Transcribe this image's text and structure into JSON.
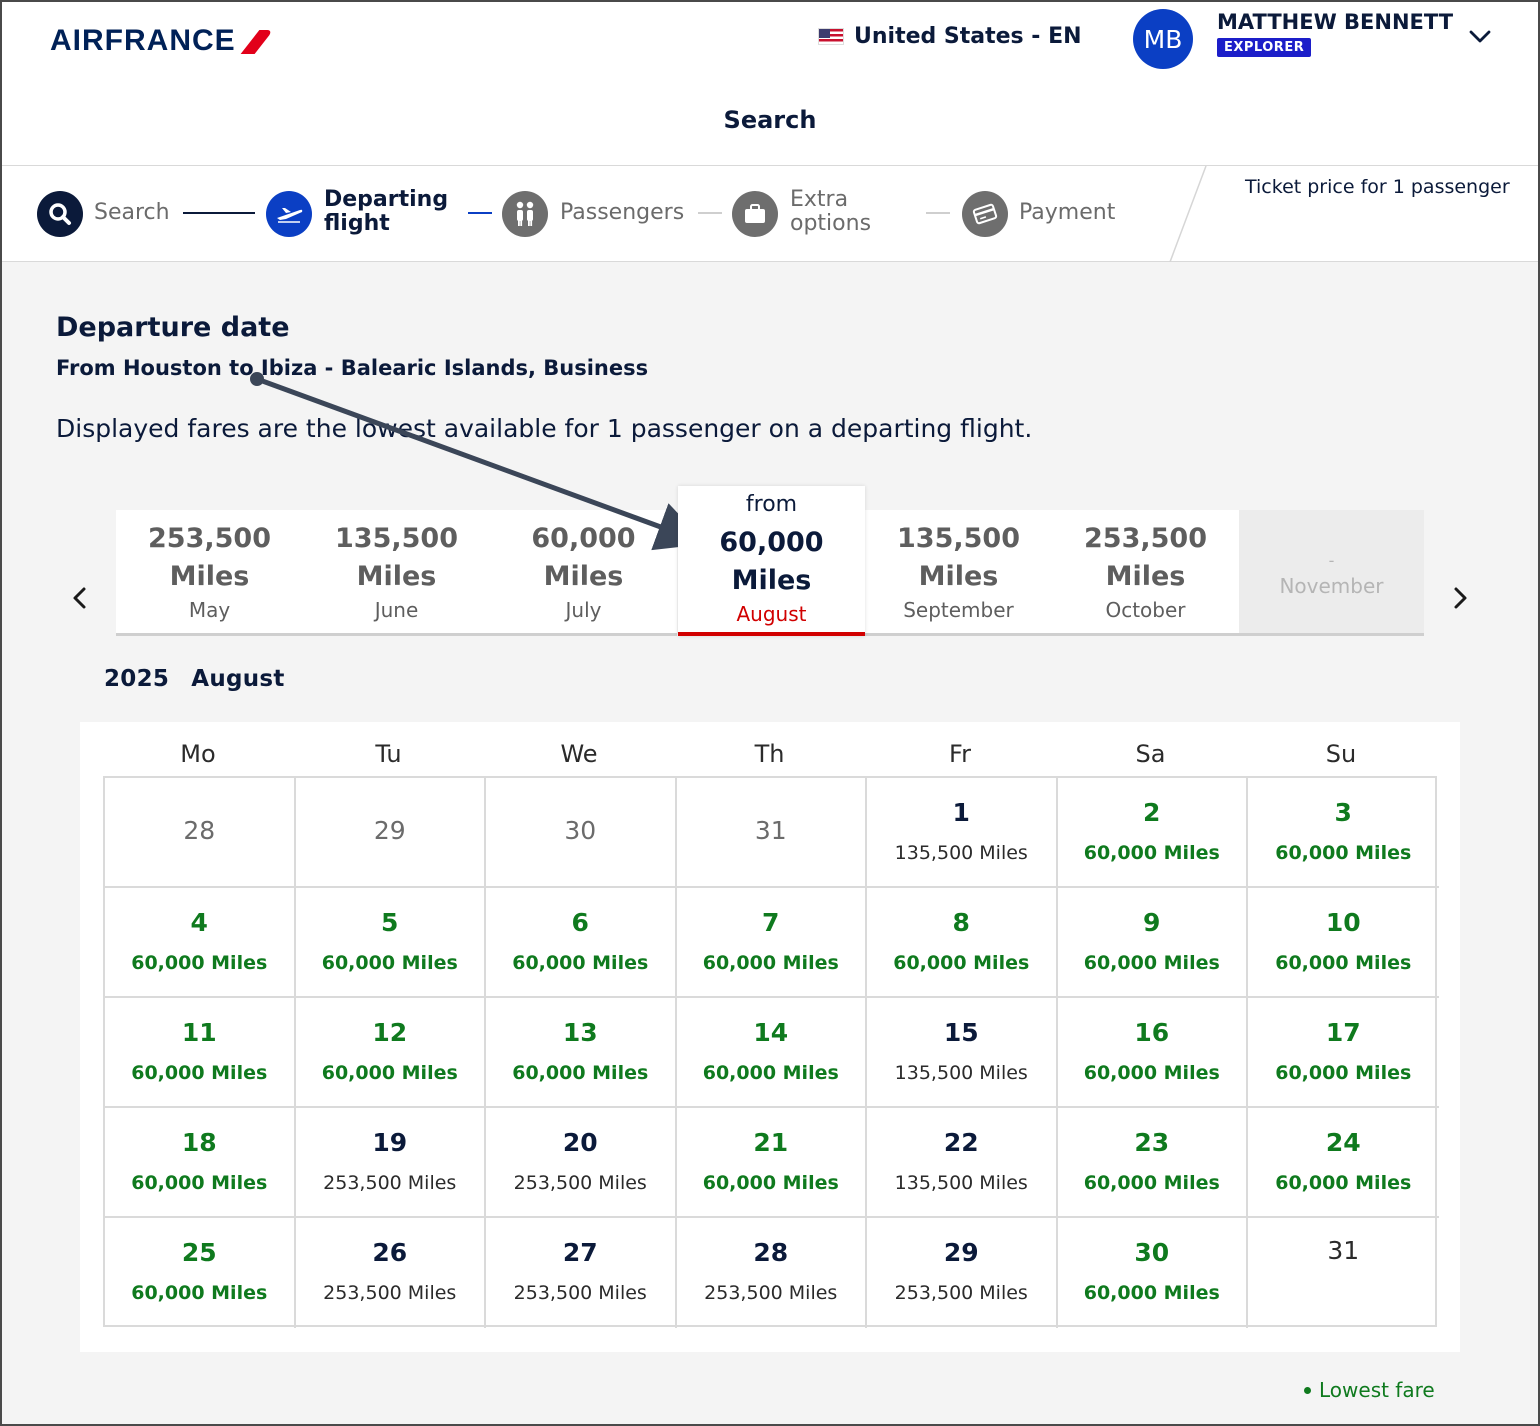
{
  "header": {
    "logo_text": "AIRFRANCE",
    "locale": "United States - EN",
    "avatar_initials": "MB",
    "user_name": "MATTHEW BENNETT",
    "user_tier": "EXPLORER",
    "page_title": "Search"
  },
  "stepper": {
    "steps": [
      {
        "label": "Search",
        "icon": "search-icon",
        "state": "done"
      },
      {
        "label": "Departing flight",
        "line1": "Departing",
        "line2": "flight",
        "icon": "plane-icon",
        "state": "active"
      },
      {
        "label": "Passengers",
        "icon": "passengers-icon",
        "state": "pending"
      },
      {
        "label": "Extra options",
        "line1": "Extra",
        "line2": "options",
        "icon": "briefcase-icon",
        "state": "pending"
      },
      {
        "label": "Payment",
        "icon": "card-icon",
        "state": "pending"
      }
    ],
    "ticket_note": "Ticket price for 1 passenger"
  },
  "content": {
    "title": "Departure date",
    "route": "From Houston to Ibiza - Balearic Islands, Business",
    "disclaimer": "Displayed fares are the lowest available for 1 passenger on a departing flight."
  },
  "months": [
    {
      "price": "253,500",
      "unit": "Miles",
      "name": "May",
      "state": "normal"
    },
    {
      "price": "135,500",
      "unit": "Miles",
      "name": "June",
      "state": "normal"
    },
    {
      "price": "60,000",
      "unit": "Miles",
      "name": "July",
      "state": "normal"
    },
    {
      "prefix": "from",
      "price": "60,000",
      "unit": "Miles",
      "name": "August",
      "state": "selected"
    },
    {
      "price": "135,500",
      "unit": "Miles",
      "name": "September",
      "state": "normal"
    },
    {
      "price": "253,500",
      "unit": "Miles",
      "name": "October",
      "state": "normal"
    },
    {
      "price": "-",
      "unit": "",
      "name": "November",
      "state": "disabled"
    }
  ],
  "calendar": {
    "year": "2025",
    "month": "August",
    "weekdays": [
      "Mo",
      "Tu",
      "We",
      "Th",
      "Fr",
      "Sa",
      "Su"
    ],
    "days": [
      {
        "day": "28",
        "fare": "",
        "type": "other"
      },
      {
        "day": "29",
        "fare": "",
        "type": "other"
      },
      {
        "day": "30",
        "fare": "",
        "type": "other"
      },
      {
        "day": "31",
        "fare": "",
        "type": "other"
      },
      {
        "day": "1",
        "fare": "135,500 Miles",
        "type": "normal"
      },
      {
        "day": "2",
        "fare": "60,000 Miles",
        "type": "low"
      },
      {
        "day": "3",
        "fare": "60,000 Miles",
        "type": "low"
      },
      {
        "day": "4",
        "fare": "60,000 Miles",
        "type": "low"
      },
      {
        "day": "5",
        "fare": "60,000 Miles",
        "type": "low"
      },
      {
        "day": "6",
        "fare": "60,000 Miles",
        "type": "low"
      },
      {
        "day": "7",
        "fare": "60,000 Miles",
        "type": "low"
      },
      {
        "day": "8",
        "fare": "60,000 Miles",
        "type": "low"
      },
      {
        "day": "9",
        "fare": "60,000 Miles",
        "type": "low"
      },
      {
        "day": "10",
        "fare": "60,000 Miles",
        "type": "low"
      },
      {
        "day": "11",
        "fare": "60,000 Miles",
        "type": "low"
      },
      {
        "day": "12",
        "fare": "60,000 Miles",
        "type": "low"
      },
      {
        "day": "13",
        "fare": "60,000 Miles",
        "type": "low"
      },
      {
        "day": "14",
        "fare": "60,000 Miles",
        "type": "low"
      },
      {
        "day": "15",
        "fare": "135,500 Miles",
        "type": "normal"
      },
      {
        "day": "16",
        "fare": "60,000 Miles",
        "type": "low"
      },
      {
        "day": "17",
        "fare": "60,000 Miles",
        "type": "low"
      },
      {
        "day": "18",
        "fare": "60,000 Miles",
        "type": "low"
      },
      {
        "day": "19",
        "fare": "253,500 Miles",
        "type": "normal"
      },
      {
        "day": "20",
        "fare": "253,500 Miles",
        "type": "normal"
      },
      {
        "day": "21",
        "fare": "60,000 Miles",
        "type": "low"
      },
      {
        "day": "22",
        "fare": "135,500 Miles",
        "type": "normal"
      },
      {
        "day": "23",
        "fare": "60,000 Miles",
        "type": "low"
      },
      {
        "day": "24",
        "fare": "60,000 Miles",
        "type": "low"
      },
      {
        "day": "25",
        "fare": "60,000 Miles",
        "type": "low"
      },
      {
        "day": "26",
        "fare": "253,500 Miles",
        "type": "normal"
      },
      {
        "day": "27",
        "fare": "253,500 Miles",
        "type": "normal"
      },
      {
        "day": "28",
        "fare": "253,500 Miles",
        "type": "normal"
      },
      {
        "day": "29",
        "fare": "253,500 Miles",
        "type": "normal"
      },
      {
        "day": "30",
        "fare": "60,000 Miles",
        "type": "low"
      },
      {
        "day": "31",
        "fare": "",
        "type": "plain"
      }
    ]
  },
  "legend": {
    "label": "Lowest fare"
  },
  "colors": {
    "brand_navy": "#002157",
    "brand_red": "#e2001a",
    "lowest_fare_green": "#0f7a1e",
    "active_step_blue": "#0b3fc4",
    "annotation_arrow": "#3b4658"
  }
}
